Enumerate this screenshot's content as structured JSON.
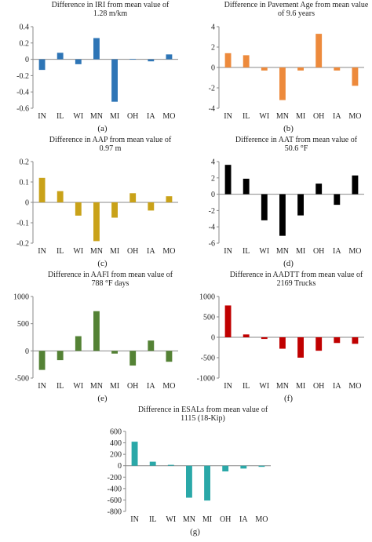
{
  "chart_data": [
    {
      "id": "a",
      "type": "bar",
      "title_lines": [
        "Difference in IRI from mean value of",
        "1.28 m/km"
      ],
      "categories": [
        "IN",
        "IL",
        "WI",
        "MN",
        "MI",
        "OH",
        "IA",
        "MO"
      ],
      "values": [
        -0.13,
        0.08,
        -0.06,
        0.26,
        -0.52,
        0.005,
        -0.025,
        0.06
      ],
      "ylim": [
        -0.6,
        0.4
      ],
      "yticks": [
        -0.6,
        -0.4,
        -0.2,
        0,
        0.2,
        0.4
      ],
      "ytick_labels": [
        "-0.6",
        "-0.4",
        "-0.2",
        "0",
        "0.2",
        "0.4"
      ],
      "color": "#2E75B6",
      "caption": "(a)"
    },
    {
      "id": "b",
      "type": "bar",
      "title_lines": [
        "Difference in Pavement Age from mean value",
        "of 9.6 years"
      ],
      "categories": [
        "IN",
        "IL",
        "WI",
        "MN",
        "MI",
        "OH",
        "IA",
        "MO"
      ],
      "values": [
        1.4,
        1.2,
        -0.3,
        -3.2,
        -0.3,
        3.3,
        -0.3,
        -1.8
      ],
      "ylim": [
        -4,
        4
      ],
      "yticks": [
        -4,
        -2,
        0,
        2,
        4
      ],
      "ytick_labels": [
        "-4",
        "-2",
        "0",
        "2",
        "4"
      ],
      "color": "#ED8A3C",
      "caption": "(b)"
    },
    {
      "id": "c",
      "type": "bar",
      "title_lines": [
        "Difference in AAP from mean value of",
        "0.97 m"
      ],
      "categories": [
        "IN",
        "IL",
        "WI",
        "MN",
        "MI",
        "OH",
        "IA",
        "MO"
      ],
      "values": [
        0.12,
        0.055,
        -0.065,
        -0.19,
        -0.075,
        0.045,
        -0.04,
        0.03
      ],
      "ylim": [
        -0.2,
        0.2
      ],
      "yticks": [
        -0.2,
        -0.1,
        0,
        0.1,
        0.2
      ],
      "ytick_labels": [
        "-0.2",
        "-0.1",
        "0",
        "0.1",
        "0.2"
      ],
      "color": "#C9A219",
      "caption": "(c)"
    },
    {
      "id": "d",
      "type": "bar",
      "title_lines": [
        "Difference in AAT from mean value of",
        "50.6 °F"
      ],
      "categories": [
        "IN",
        "IL",
        "WI",
        "MN",
        "MI",
        "OH",
        "IA",
        "MO"
      ],
      "values": [
        3.6,
        1.9,
        -3.2,
        -5.1,
        -2.6,
        1.3,
        -1.3,
        2.3
      ],
      "ylim": [
        -6,
        4
      ],
      "yticks": [
        -6,
        -4,
        -2,
        0,
        2,
        4
      ],
      "ytick_labels": [
        "-6",
        "-4",
        "-2",
        "0",
        "2",
        "4"
      ],
      "color": "#000000",
      "caption": "(d)"
    },
    {
      "id": "e",
      "type": "bar",
      "title_lines": [
        "Difference in AAFI from mean value of",
        "788 °F days"
      ],
      "categories": [
        "IN",
        "IL",
        "WI",
        "MN",
        "MI",
        "OH",
        "IA",
        "MO"
      ],
      "values": [
        -350,
        -170,
        270,
        730,
        -50,
        -270,
        190,
        -200
      ],
      "ylim": [
        -500,
        1000
      ],
      "yticks": [
        -500,
        0,
        500,
        1000
      ],
      "ytick_labels": [
        "-500",
        "0",
        "500",
        "1000"
      ],
      "color": "#548235",
      "caption": "(e)"
    },
    {
      "id": "f",
      "type": "bar",
      "title_lines": [
        "Difference in AADTT from mean value of",
        "2169 Trucks"
      ],
      "categories": [
        "IN",
        "IL",
        "WI",
        "MN",
        "MI",
        "OH",
        "IA",
        "MO"
      ],
      "values": [
        780,
        70,
        -40,
        -280,
        -500,
        -330,
        -140,
        -160
      ],
      "ylim": [
        -1000,
        1000
      ],
      "yticks": [
        -1000,
        -500,
        0,
        500,
        1000
      ],
      "ytick_labels": [
        "-1000",
        "-500",
        "0",
        "500",
        "1000"
      ],
      "color": "#C00000",
      "caption": "(f)"
    },
    {
      "id": "g",
      "type": "bar",
      "title_lines": [
        "Difference in ESALs from mean value of",
        "1115 (18-Kip)"
      ],
      "categories": [
        "IN",
        "IL",
        "WI",
        "MN",
        "MI",
        "OH",
        "IA",
        "MO"
      ],
      "values": [
        420,
        70,
        15,
        -560,
        -610,
        -100,
        -50,
        -20
      ],
      "ylim": [
        -800,
        600
      ],
      "yticks": [
        -800,
        -600,
        -400,
        -200,
        0,
        200,
        400,
        600
      ],
      "ytick_labels": [
        "-800",
        "-600",
        "-400",
        "-200",
        "0",
        "200",
        "400",
        "600"
      ],
      "color": "#2AA8A8",
      "caption": "(g)"
    }
  ]
}
